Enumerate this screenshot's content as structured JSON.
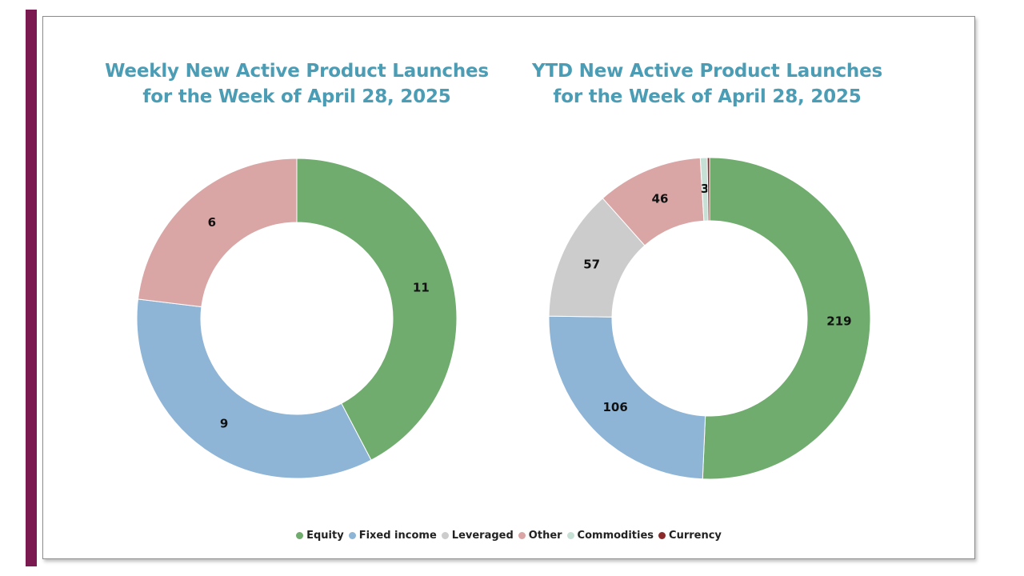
{
  "colors": {
    "accent_bar": "#7a1a50",
    "title": "#4a9db5",
    "Equity": "#6fac6e",
    "Fixed income": "#8eb4d6",
    "Leveraged": "#cccccc",
    "Other": "#d9a5a5",
    "Commodities": "#c6e0d6",
    "Currency": "#8b2a2a"
  },
  "legend": [
    "Equity",
    "Fixed income",
    "Leveraged",
    "Other",
    "Commodities",
    "Currency"
  ],
  "chart_data": [
    {
      "type": "pie",
      "variant": "donut",
      "title_lines": [
        "Weekly New Active Product Launches",
        "for the Week of April 28, 2025"
      ],
      "categories": [
        "Equity",
        "Fixed income",
        "Leveraged",
        "Other",
        "Commodities",
        "Currency"
      ],
      "values": [
        11,
        9,
        0,
        6,
        0,
        0
      ],
      "data_labels": [
        "11",
        "9",
        "",
        "6",
        "",
        ""
      ],
      "start": "12 o'clock, clockwise"
    },
    {
      "type": "pie",
      "variant": "donut",
      "title_lines": [
        "YTD New Active Product Launches",
        "for the Week of April 28, 2025"
      ],
      "categories": [
        "Equity",
        "Fixed income",
        "Leveraged",
        "Other",
        "Commodities",
        "Currency"
      ],
      "values": [
        219,
        106,
        57,
        46,
        3,
        1
      ],
      "data_labels": [
        "219",
        "106",
        "57",
        "46",
        "3",
        ""
      ],
      "start": "12 o'clock, clockwise"
    }
  ]
}
